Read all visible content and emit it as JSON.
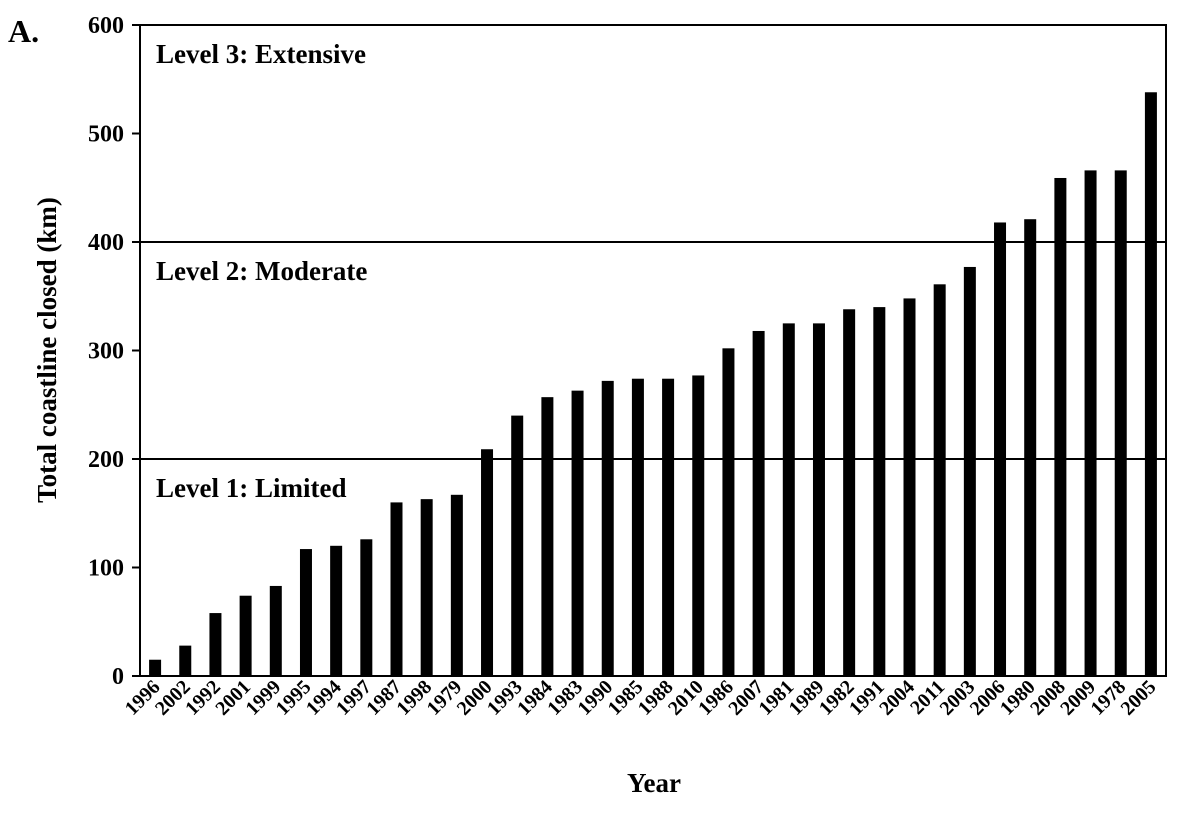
{
  "chart_data": {
    "type": "bar",
    "panel_label": "A.",
    "xlabel": "Year",
    "ylabel": "Total coastline closed (km)",
    "ylim": [
      0,
      600
    ],
    "yticks": [
      0,
      100,
      200,
      300,
      400,
      500,
      600
    ],
    "grid": false,
    "categories": [
      "1996",
      "2002",
      "1992",
      "2001",
      "1999",
      "1995",
      "1994",
      "1997",
      "1987",
      "1998",
      "1979",
      "2000",
      "1993",
      "1984",
      "1983",
      "1990",
      "1985",
      "1988",
      "2010",
      "1986",
      "2007",
      "1981",
      "1989",
      "1982",
      "1991",
      "2004",
      "2011",
      "2003",
      "2006",
      "1980",
      "2008",
      "2009",
      "1978",
      "2005"
    ],
    "values": [
      15,
      28,
      58,
      74,
      83,
      117,
      120,
      126,
      160,
      163,
      167,
      209,
      240,
      257,
      263,
      272,
      274,
      274,
      277,
      302,
      318,
      325,
      325,
      338,
      340,
      348,
      361,
      377,
      418,
      421,
      459,
      466,
      466,
      538
    ],
    "bar_color": "#000000",
    "thresholds": [
      {
        "value": 200,
        "label": "Level 1: Limited"
      },
      {
        "value": 400,
        "label": "Level 2: Moderate"
      },
      {
        "value": 600,
        "label": "Level 3: Extensive"
      }
    ]
  }
}
